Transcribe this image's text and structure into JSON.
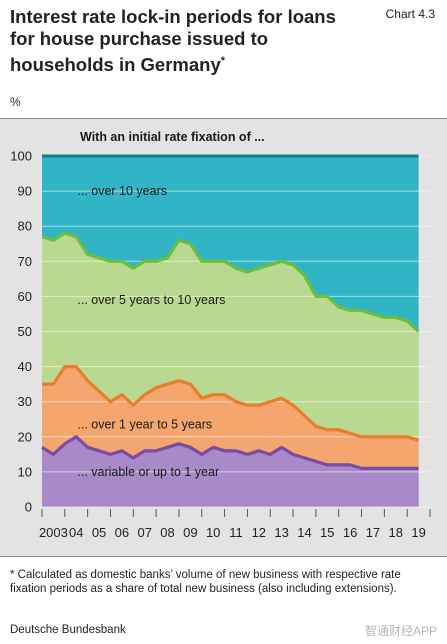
{
  "header": {
    "title": "Interest rate lock-in periods for loans for house purchase issued to households in Germany",
    "title_marker": "*",
    "chart_label": "Chart 4.3",
    "unit": "%"
  },
  "chart_data": {
    "type": "area",
    "title": "With an initial rate fixation of ...",
    "ylabel": "%",
    "ylim": [
      0,
      100
    ],
    "yticks": [
      0,
      10,
      20,
      30,
      40,
      50,
      60,
      70,
      80,
      90,
      100
    ],
    "xlim": [
      2003.0,
      2020.0
    ],
    "xtick_labels": [
      {
        "year": 2003,
        "label": "2003"
      },
      {
        "year": 2004,
        "label": "04"
      },
      {
        "year": 2005,
        "label": "05"
      },
      {
        "year": 2006,
        "label": "06"
      },
      {
        "year": 2007,
        "label": "07"
      },
      {
        "year": 2008,
        "label": "08"
      },
      {
        "year": 2009,
        "label": "09"
      },
      {
        "year": 2010,
        "label": "10"
      },
      {
        "year": 2011,
        "label": "11"
      },
      {
        "year": 2012,
        "label": "12"
      },
      {
        "year": 2013,
        "label": "13"
      },
      {
        "year": 2014,
        "label": "14"
      },
      {
        "year": 2015,
        "label": "15"
      },
      {
        "year": 2016,
        "label": "16"
      },
      {
        "year": 2017,
        "label": "17"
      },
      {
        "year": 2018,
        "label": "18"
      },
      {
        "year": 2019,
        "label": "19"
      }
    ],
    "x": [
      2003.0,
      2003.5,
      2004.0,
      2004.5,
      2005.0,
      2005.5,
      2006.0,
      2006.5,
      2007.0,
      2007.5,
      2008.0,
      2008.5,
      2009.0,
      2009.5,
      2010.0,
      2010.5,
      2011.0,
      2011.5,
      2012.0,
      2012.5,
      2013.0,
      2013.5,
      2014.0,
      2014.5,
      2015.0,
      2015.5,
      2016.0,
      2016.5,
      2017.0,
      2017.5,
      2018.0,
      2018.5,
      2019.0,
      2019.5
    ],
    "series": [
      {
        "name": "... variable or up to 1 year",
        "color": "#7b4aa6",
        "fill": "#a98ac9",
        "values": [
          17,
          15,
          18,
          20,
          17,
          16,
          15,
          16,
          14,
          16,
          16,
          17,
          18,
          17,
          15,
          17,
          16,
          16,
          15,
          16,
          15,
          17,
          15,
          14,
          13,
          12,
          12,
          12,
          11,
          11,
          11,
          11,
          11,
          11
        ]
      },
      {
        "name": "... over 1 year to 5 years",
        "color": "#ea7d2d",
        "fill": "#f5a66e",
        "values": [
          35,
          35,
          40,
          40,
          36,
          33,
          30,
          32,
          29,
          32,
          34,
          35,
          36,
          35,
          31,
          32,
          32,
          30,
          29,
          29,
          30,
          31,
          29,
          26,
          23,
          22,
          22,
          21,
          20,
          20,
          20,
          20,
          20,
          19
        ]
      },
      {
        "name": "... over 5 years to 10 years",
        "color": "#6bbf3c",
        "fill": "#b8d98f",
        "values": [
          77,
          76,
          78,
          77,
          72,
          71,
          70,
          70,
          68,
          70,
          70,
          71,
          76,
          75,
          70,
          70,
          70,
          68,
          67,
          68,
          69,
          70,
          69,
          66,
          60,
          60,
          57,
          56,
          56,
          55,
          54,
          54,
          53,
          50
        ]
      },
      {
        "name": "... over 10 years",
        "color": "#1e98aa",
        "fill": "#31b4c6",
        "values": [
          100,
          100,
          100,
          100,
          100,
          100,
          100,
          100,
          100,
          100,
          100,
          100,
          100,
          100,
          100,
          100,
          100,
          100,
          100,
          100,
          100,
          100,
          100,
          100,
          100,
          100,
          100,
          100,
          100,
          100,
          100,
          100,
          100,
          100
        ]
      }
    ]
  },
  "footnote": "* Calculated as domestic banks’ volume of new business with respective rate fixation periods as a share of total new business (also including extensions).",
  "source": "Deutsche Bundesbank",
  "watermark": "智通财经APP",
  "colors": {
    "panel": "#e3e3e3",
    "top_line": "#0f7f8c"
  }
}
